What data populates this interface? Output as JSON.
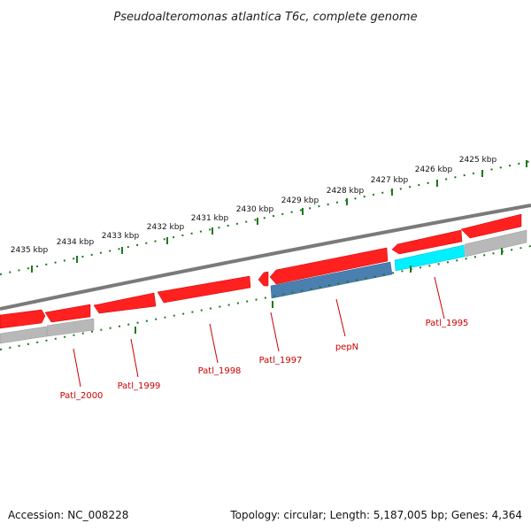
{
  "title": "Pseudoalteromonas atlantica T6c, complete genome",
  "footer": {
    "accession": "Accession: NC_008228",
    "summary": "Topology: circular; Length: 5,187,005 bp; Genes: 4,364"
  },
  "colors": {
    "backbone": "#7a7a7a",
    "forward_gene": "#ff0000",
    "cds_blue": "#4a7fb0",
    "cds_cyan": "#00f0ff",
    "cds_gray": "#b8b8b8",
    "tick": "#1a7a1a",
    "label": "#cc0000"
  },
  "kbp_labels": [
    "2425 kbp",
    "2426 kbp",
    "2427 kbp",
    "2428 kbp",
    "2429 kbp",
    "2430 kbp",
    "2431 kbp",
    "2432 kbp",
    "2433 kbp",
    "2434 kbp",
    "2435 kbp"
  ],
  "gene_labels": [
    "Patl_1995",
    "pepN",
    "Patl_1997",
    "Patl_1998",
    "Patl_1999",
    "Patl_2000"
  ]
}
